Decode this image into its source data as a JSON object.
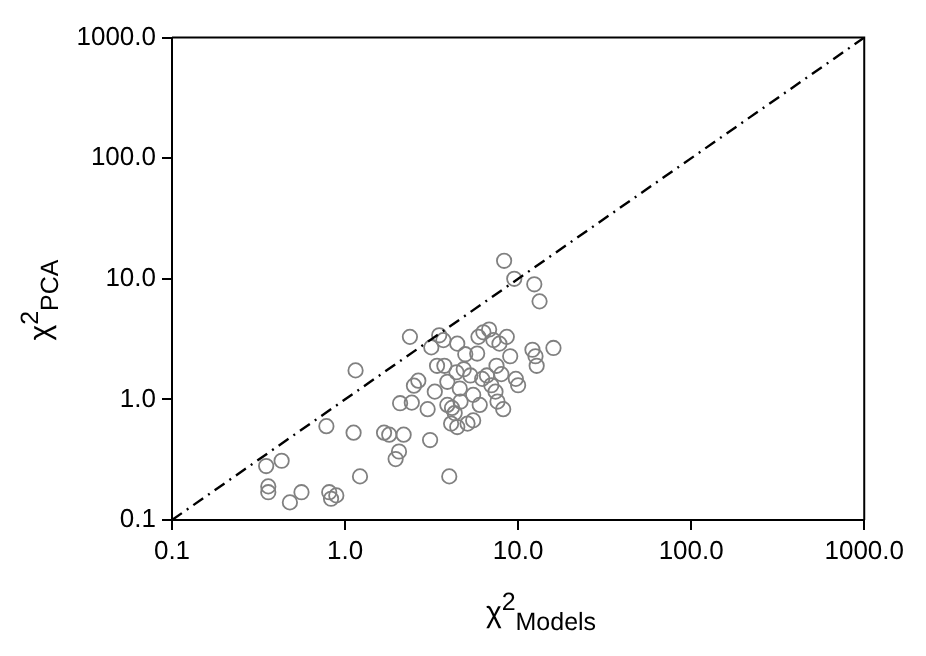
{
  "chart_data": {
    "type": "scatter",
    "xlabel": "χ$^{2}$$_{Models}$",
    "ylabel": "χ$^{2}$$_{PCA}$",
    "log": "xy",
    "grid": false,
    "legend": false,
    "marker": "circle",
    "xlim": [
      0.1,
      1000
    ],
    "ylim": [
      0.1,
      1000
    ],
    "xticks": [
      0.1,
      {
        "value": 1,
        "label": "1.0"
      },
      {
        "value": 10,
        "label": "10.0"
      },
      {
        "value": 100,
        "label": "100.0"
      },
      {
        "value": 1000,
        "label": "1000.0"
      }
    ],
    "yticks": [
      0.1,
      {
        "value": 1,
        "label": "1.0"
      },
      {
        "value": 10,
        "label": "10.0"
      },
      {
        "value": 100,
        "label": "100.0"
      },
      {
        "value": 1000,
        "label": "1000.0"
      }
    ],
    "series": [
      {
        "type": "line",
        "color": "#000000",
        "line_style": "dashed",
        "marker": "none",
        "x": [
          0.1,
          1000
        ],
        "values": [
          0.1,
          1000
        ]
      },
      {
        "type": "scatter",
        "color": "#808080",
        "x": [
          0.35,
          0.43,
          0.36,
          0.36,
          0.48,
          0.56,
          0.78,
          0.81,
          0.83,
          0.89,
          1.12,
          1.15,
          1.22,
          1.68,
          1.8,
          1.96,
          2.05,
          2.08,
          2.18,
          2.37,
          2.43,
          2.5,
          2.65,
          3.0,
          3.1,
          3.15,
          3.3,
          3.4,
          3.5,
          3.7,
          3.75,
          3.9,
          4.0,
          4.1,
          3.9,
          4.15,
          4.3,
          4.4,
          4.45,
          4.6,
          4.65,
          4.45,
          4.95,
          5.1,
          5.3,
          5.5,
          5.8,
          5.9,
          6.0,
          6.2,
          6.3,
          6.6,
          6.8,
          7.0,
          7.2,
          7.4,
          7.5,
          7.6,
          7.8,
          8.0,
          8.2,
          8.3,
          8.6,
          9.0,
          9.5,
          9.7,
          10.0,
          12.1,
          12.4,
          12.6,
          12.8,
          13.3,
          16.0,
          5.5,
          4.85
        ],
        "values": [
          0.28,
          0.31,
          0.19,
          0.17,
          0.14,
          0.17,
          0.6,
          0.17,
          0.15,
          0.16,
          0.53,
          1.74,
          0.23,
          0.53,
          0.51,
          0.32,
          0.37,
          0.93,
          0.51,
          3.3,
          0.94,
          1.3,
          1.43,
          0.83,
          0.46,
          2.7,
          1.16,
          1.9,
          3.4,
          3.1,
          1.9,
          1.4,
          0.23,
          0.63,
          0.9,
          0.85,
          0.77,
          1.68,
          0.59,
          1.23,
          0.96,
          2.9,
          2.37,
          0.63,
          1.58,
          1.09,
          2.4,
          3.3,
          0.9,
          1.48,
          3.6,
          1.58,
          3.8,
          1.31,
          3.1,
          1.16,
          1.9,
          0.96,
          2.9,
          1.62,
          0.83,
          14.1,
          3.3,
          2.28,
          10.0,
          1.48,
          1.31,
          2.58,
          9.0,
          2.28,
          1.9,
          6.5,
          2.67,
          0.67,
          1.78
        ]
      }
    ]
  }
}
